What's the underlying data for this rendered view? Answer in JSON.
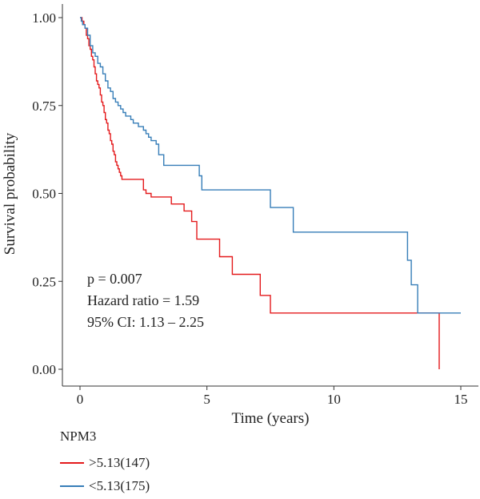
{
  "chart_data": {
    "type": "line",
    "xlabel": "Time (years)",
    "ylabel": "Survival probability",
    "xlim": [
      0,
      15
    ],
    "ylim": [
      0,
      1
    ],
    "x_ticks": [
      "0",
      "5",
      "10",
      "15"
    ],
    "y_ticks": [
      "0.00",
      "0.25",
      "0.50",
      "0.75",
      "1.00"
    ],
    "annotations": [
      "p = 0.007",
      "Hazard ratio = 1.59",
      "95% CI: 1.13 – 2.25"
    ],
    "legend": {
      "title": "NPM3",
      "placement": "bottom"
    },
    "series": [
      {
        "name": ">5.13(147)",
        "color": "#e41a1c",
        "x": [
          0,
          0.08,
          0.15,
          0.2,
          0.25,
          0.3,
          0.35,
          0.4,
          0.45,
          0.5,
          0.55,
          0.6,
          0.65,
          0.7,
          0.75,
          0.8,
          0.85,
          0.9,
          0.95,
          1.0,
          1.05,
          1.1,
          1.15,
          1.2,
          1.25,
          1.3,
          1.35,
          1.4,
          1.45,
          1.5,
          1.55,
          1.6,
          1.65,
          1.7,
          1.75,
          1.8,
          1.9,
          2.5,
          2.6,
          2.8,
          3.1,
          3.6,
          4.1,
          4.4,
          4.6,
          5.5,
          6.0,
          7.1,
          7.5,
          14.1,
          14.15
        ],
        "y": [
          1.0,
          0.99,
          0.98,
          0.97,
          0.95,
          0.94,
          0.92,
          0.91,
          0.89,
          0.88,
          0.86,
          0.84,
          0.82,
          0.81,
          0.8,
          0.78,
          0.76,
          0.75,
          0.73,
          0.71,
          0.7,
          0.68,
          0.67,
          0.65,
          0.64,
          0.62,
          0.61,
          0.59,
          0.58,
          0.57,
          0.56,
          0.55,
          0.54,
          0.54,
          0.54,
          0.54,
          0.54,
          0.51,
          0.5,
          0.49,
          0.49,
          0.47,
          0.45,
          0.42,
          0.37,
          0.32,
          0.27,
          0.21,
          0.16,
          0.16,
          0.0
        ]
      },
      {
        "name": "<5.13(175)",
        "color": "#377eb8",
        "x": [
          0,
          0.05,
          0.1,
          0.2,
          0.3,
          0.4,
          0.5,
          0.6,
          0.7,
          0.8,
          0.9,
          1.0,
          1.1,
          1.2,
          1.3,
          1.4,
          1.5,
          1.6,
          1.7,
          1.8,
          1.9,
          2.0,
          2.1,
          2.3,
          2.5,
          2.6,
          2.7,
          2.8,
          3.0,
          3.1,
          3.3,
          4.7,
          4.8,
          7.5,
          8.4,
          12.9,
          13.05,
          13.3,
          14.1,
          15.0
        ],
        "y": [
          1.0,
          0.99,
          0.98,
          0.97,
          0.95,
          0.92,
          0.9,
          0.89,
          0.87,
          0.86,
          0.84,
          0.82,
          0.8,
          0.79,
          0.77,
          0.76,
          0.75,
          0.74,
          0.73,
          0.72,
          0.72,
          0.71,
          0.7,
          0.69,
          0.68,
          0.67,
          0.66,
          0.65,
          0.64,
          0.61,
          0.58,
          0.55,
          0.51,
          0.46,
          0.39,
          0.31,
          0.24,
          0.16,
          0.16,
          0.16
        ]
      }
    ]
  }
}
